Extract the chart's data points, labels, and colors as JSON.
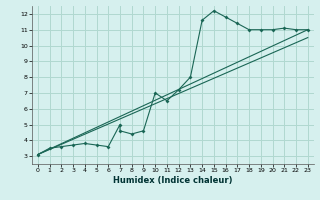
{
  "xlabel": "Humidex (Indice chaleur)",
  "bg_color": "#d6f0ee",
  "grid_color": "#b0d8d0",
  "line_color": "#1a6655",
  "xlim": [
    -0.5,
    23.5
  ],
  "ylim": [
    2.5,
    12.5
  ],
  "xticks": [
    0,
    1,
    2,
    3,
    4,
    5,
    6,
    7,
    8,
    9,
    10,
    11,
    12,
    13,
    14,
    15,
    16,
    17,
    18,
    19,
    20,
    21,
    22,
    23
  ],
  "yticks": [
    3,
    4,
    5,
    6,
    7,
    8,
    9,
    10,
    11,
    12
  ],
  "line1_x": [
    0,
    1,
    2,
    3,
    4,
    5,
    6,
    7,
    7,
    8,
    9,
    10,
    11,
    12,
    13,
    14,
    15,
    16,
    17,
    18,
    19,
    20,
    21,
    22,
    23
  ],
  "line1_y": [
    3.1,
    3.5,
    3.6,
    3.7,
    3.8,
    3.7,
    3.6,
    5.0,
    4.6,
    4.4,
    4.6,
    7.0,
    6.5,
    7.2,
    8.0,
    11.6,
    12.2,
    11.8,
    11.4,
    11.0,
    11.0,
    11.0,
    11.1,
    11.0,
    11.0
  ],
  "line2_x": [
    0,
    23
  ],
  "line2_y": [
    3.1,
    11.0
  ],
  "line3_x": [
    0,
    23
  ],
  "line3_y": [
    3.1,
    11.0
  ],
  "xlabel_fontsize": 6,
  "tick_fontsize": 4.5
}
